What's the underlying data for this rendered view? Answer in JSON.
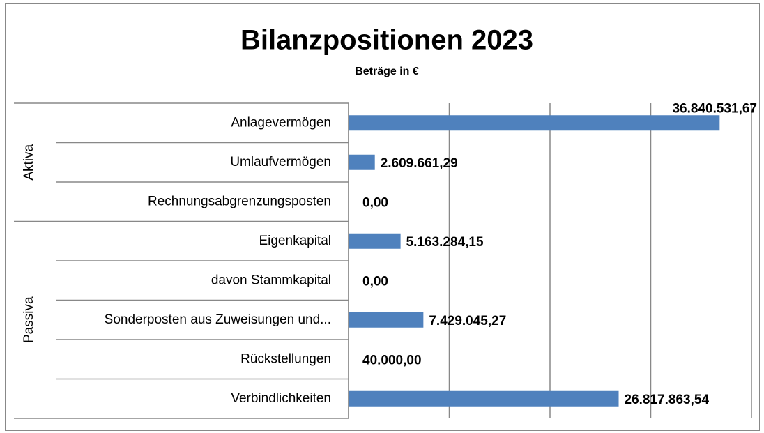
{
  "chart_data": {
    "type": "bar",
    "orientation": "horizontal",
    "title": "Bilanzpositionen 2023",
    "subtitle": "Beträge in €",
    "color": "#4f81bd",
    "xlim": [
      0,
      40000000
    ],
    "xticks": [
      0,
      10000000,
      20000000,
      30000000,
      40000000
    ],
    "grid": true,
    "groups": [
      {
        "name": "Aktiva",
        "categories": [
          "Anlagevermögen",
          "Umlaufvermögen",
          "Rechnungsabgrenzungsposten"
        ],
        "values": [
          36840531.67,
          2609661.29,
          0
        ],
        "value_labels": [
          "36.840.531,67",
          "2.609.661,29",
          "0,00"
        ]
      },
      {
        "name": "Passiva",
        "categories": [
          "Eigenkapital",
          "davon Stammkapital",
          "Sonderposten aus Zuweisungen und...",
          "Rückstellungen",
          "Verbindlichkeiten"
        ],
        "values": [
          5163284.15,
          0,
          7429045.27,
          40000,
          26817863.54
        ],
        "value_labels": [
          "5.163.284,15",
          "0,00",
          "7.429.045,27",
          "40.000,00",
          "26.817.863,54"
        ]
      }
    ]
  }
}
